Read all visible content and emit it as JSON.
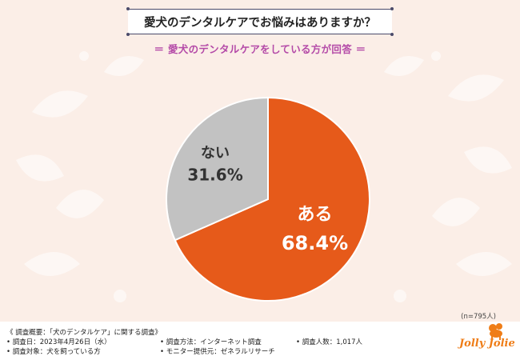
{
  "title": "愛犬のデンタルケアでお悩みはありますか？",
  "subtitle": "＝ 愛犬のデンタルケアをしている方が回答 ＝",
  "sample_size": "(n=795人)",
  "footer": {
    "survey_overview": "《 調査概要：「犬のデンタルケア」に関する調査》",
    "survey_date": "• 調査日：2023年4月26日（水）",
    "survey_target": "• 調査対象：犬を飼っている方",
    "survey_method": "• 調査方法：インターネット調査",
    "monitor_provider": "• モニター提供元：ゼネラルリサーチ",
    "respondents": "• 調査人数：1,017人"
  },
  "logo_text": "Jolly Jolie",
  "colors": {
    "background": "#fbeee7",
    "aru": "#e65a1a",
    "nai": "#c2c2c2",
    "subtitle": "#b44aa8"
  },
  "chart_data": {
    "type": "pie",
    "categories": [
      "ある",
      "ない"
    ],
    "values": [
      68.4,
      31.6
    ],
    "value_labels": [
      "68.4%",
      "31.6%"
    ],
    "colors": [
      "#e65a1a",
      "#c2c2c2"
    ]
  }
}
